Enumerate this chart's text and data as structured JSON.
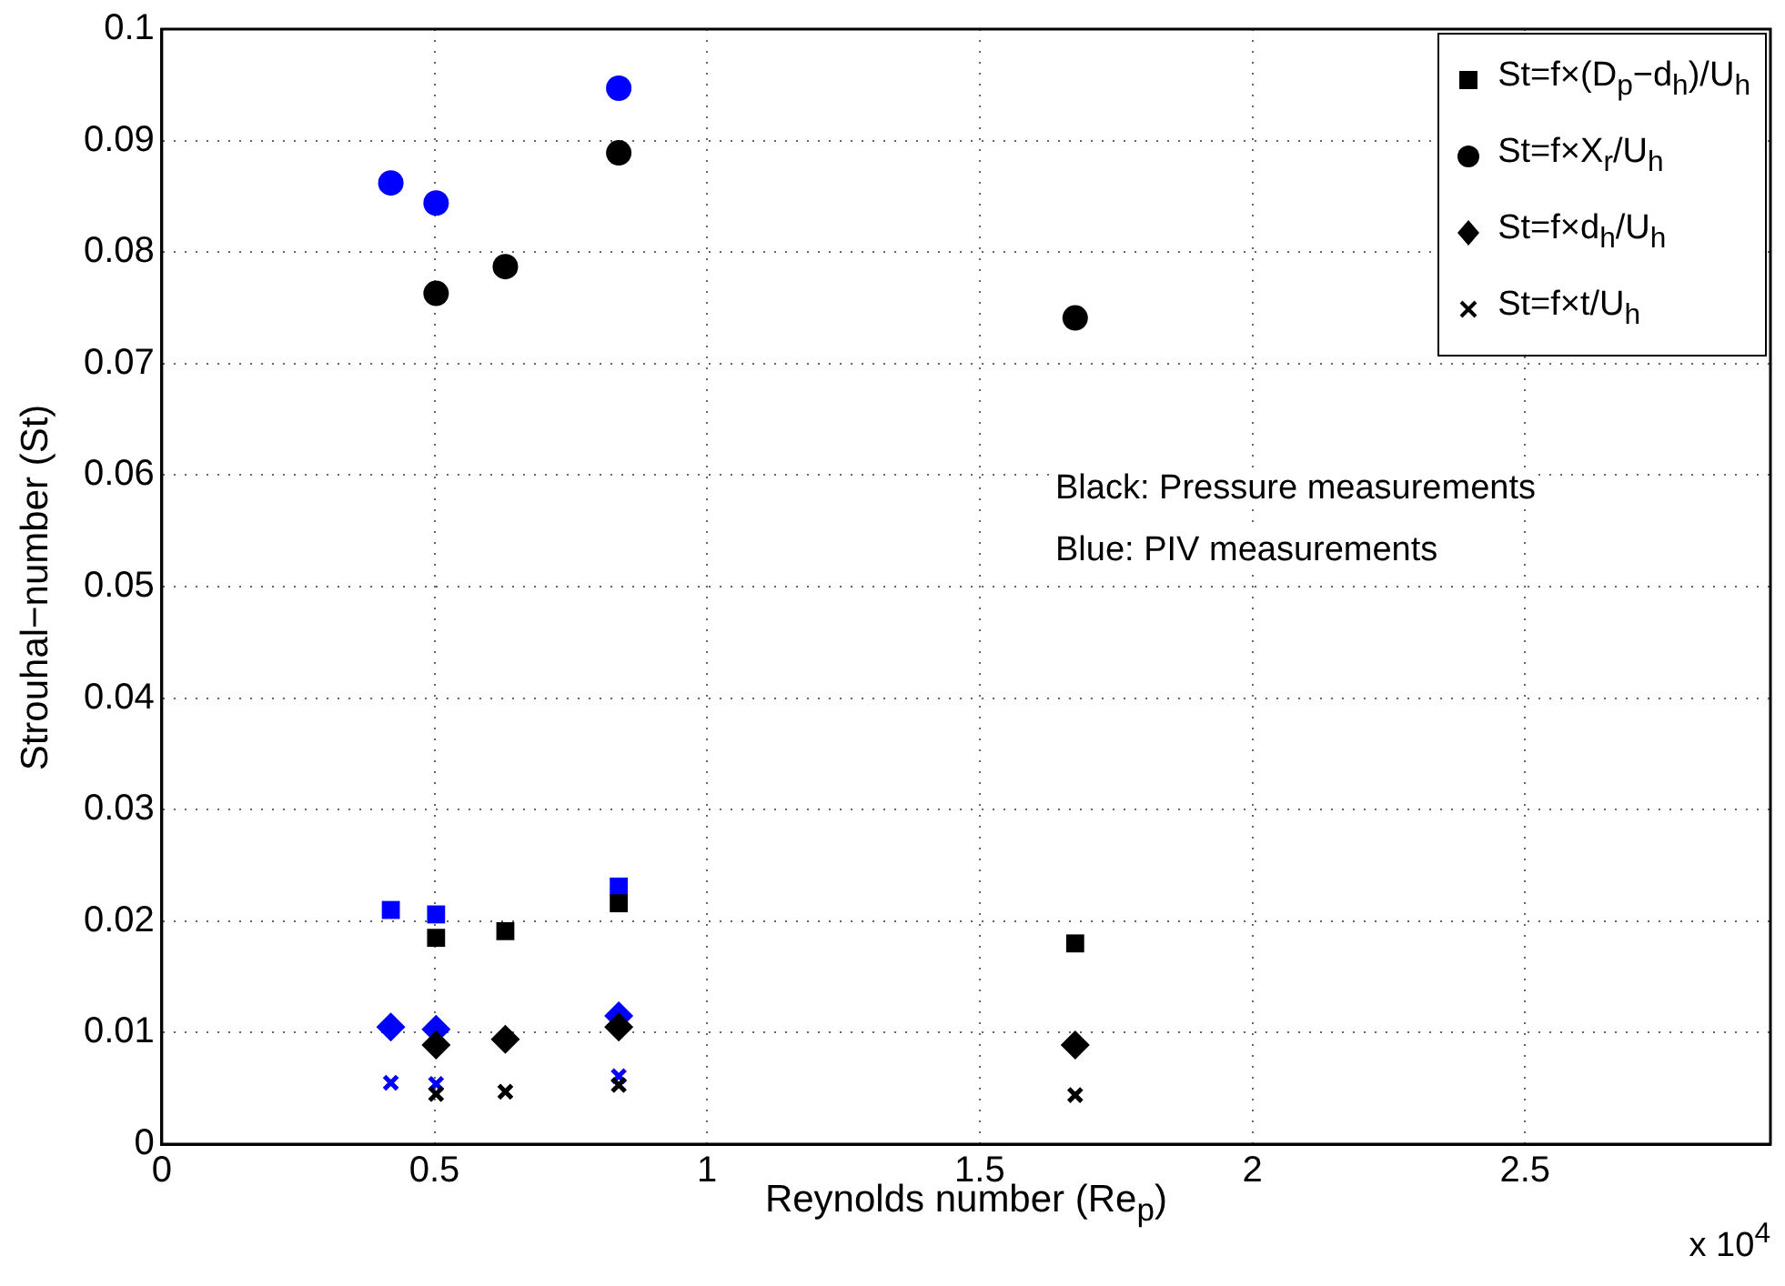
{
  "chart_data": {
    "type": "scatter",
    "xlabel": "Reynolds number (Re$_{p}$)",
    "ylabel": "Strouhal−number (St)",
    "xlim": [
      0,
      2.95
    ],
    "xticks": [
      0,
      0.5,
      1,
      1.5,
      2,
      2.5
    ],
    "ylim": [
      0,
      0.1
    ],
    "yticks": [
      0,
      0.01,
      0.02,
      0.03,
      0.04,
      0.05,
      0.06,
      0.07,
      0.08,
      0.09,
      0.1
    ],
    "grid": true,
    "legend": "top right",
    "annotations": [
      "Black: Pressure measurements",
      "Blue: PIV measurements",
      "x 10$^{4}$"
    ],
    "series": [
      {
        "name": "St=f×(D$_{p}$−d$_{h}$)/U$_{h}$",
        "color": "#000000",
        "marker": "square",
        "x": [
          0.503,
          0.63,
          0.838,
          1.675
        ],
        "values": [
          0.0185,
          0.0191,
          0.0216,
          0.018
        ]
      },
      {
        "name": "St=f×X$_{r}$/U$_{h}$",
        "color": "#000000",
        "marker": "circle",
        "x": [
          0.503,
          0.63,
          0.838,
          1.675
        ],
        "values": [
          0.0763,
          0.0787,
          0.0889,
          0.0741
        ]
      },
      {
        "name": "St=f×d$_{h}$/U$_{h}$",
        "color": "#000000",
        "marker": "diamond",
        "x": [
          0.503,
          0.63,
          0.838,
          1.675
        ],
        "values": [
          0.0089,
          0.0094,
          0.0105,
          0.0089
        ]
      },
      {
        "name": "St=f×t/U$_{h}$",
        "color": "#000000",
        "marker": "cross",
        "x": [
          0.503,
          0.63,
          0.838,
          1.675
        ],
        "values": [
          0.0045,
          0.0047,
          0.0053,
          0.0044
        ]
      },
      {
        "color": "#0000ff",
        "marker": "square",
        "x": [
          0.42,
          0.503,
          0.838
        ],
        "values": [
          0.021,
          0.0206,
          0.0231
        ]
      },
      {
        "color": "#0000ff",
        "marker": "circle",
        "x": [
          0.42,
          0.503,
          0.838
        ],
        "values": [
          0.0862,
          0.0844,
          0.0947
        ]
      },
      {
        "color": "#0000ff",
        "marker": "diamond",
        "x": [
          0.42,
          0.503,
          0.838
        ],
        "values": [
          0.0105,
          0.0103,
          0.0115
        ]
      },
      {
        "color": "#0000ff",
        "marker": "cross",
        "x": [
          0.42,
          0.503,
          0.838
        ],
        "values": [
          0.0055,
          0.0054,
          0.0061
        ]
      }
    ]
  }
}
